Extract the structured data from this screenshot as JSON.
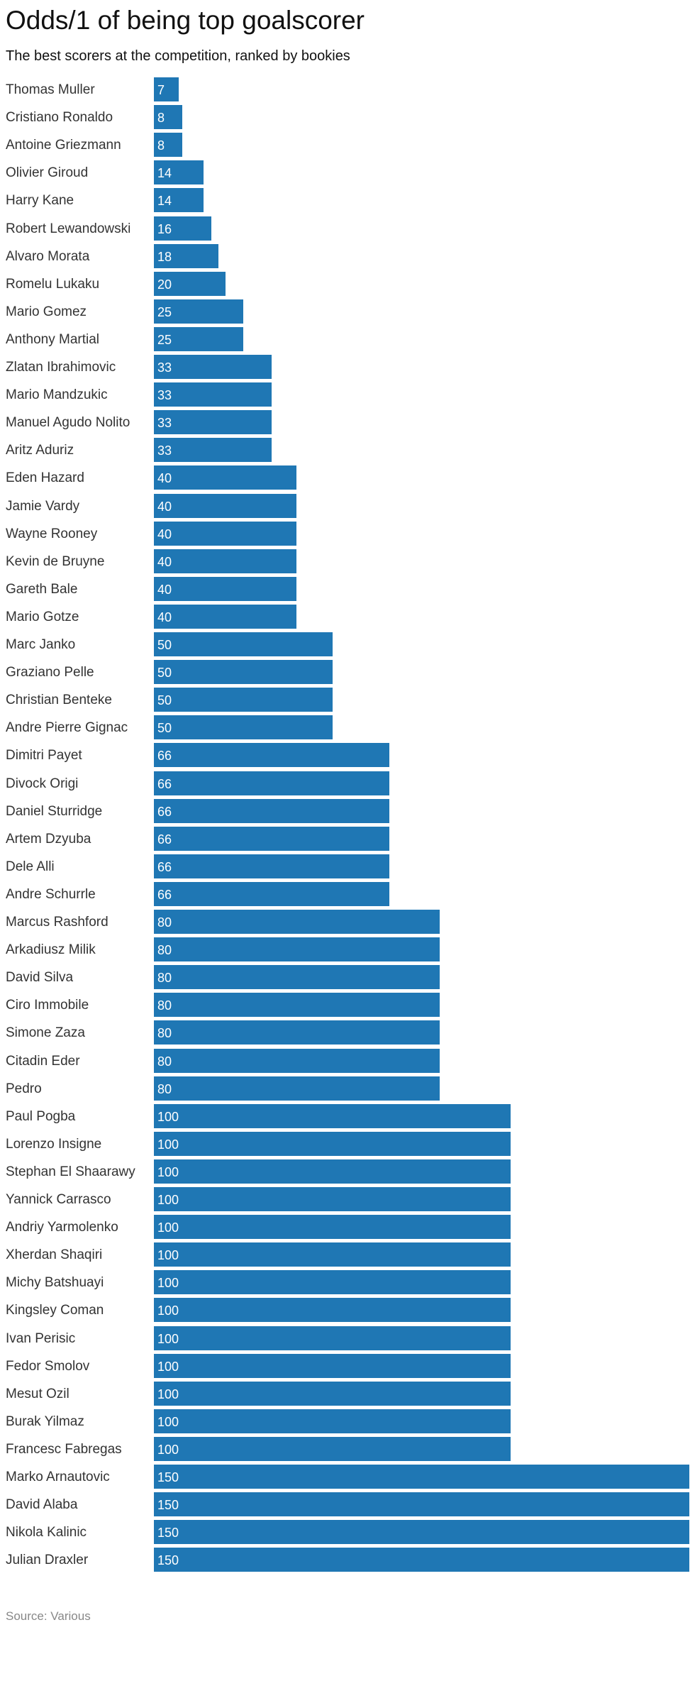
{
  "chart_data": {
    "type": "bar",
    "orientation": "horizontal",
    "title": "Odds/1 of being top goalscorer",
    "subtitle": "The best scorers at the competition, ranked by bookies",
    "source": "Source: Various",
    "bar_color": "#1f77b4",
    "xlim": [
      0,
      150
    ],
    "grid": false,
    "categories": [
      "Thomas Muller",
      "Cristiano Ronaldo",
      "Antoine Griezmann",
      "Olivier Giroud",
      "Harry Kane",
      "Robert Lewandowski",
      "Alvaro Morata",
      "Romelu Lukaku",
      "Mario Gomez",
      "Anthony Martial",
      "Zlatan Ibrahimovic",
      "Mario Mandzukic",
      "Manuel Agudo Nolito",
      "Aritz Aduriz",
      "Eden Hazard",
      "Jamie Vardy",
      "Wayne Rooney",
      "Kevin de Bruyne",
      "Gareth Bale",
      "Mario Gotze",
      "Marc Janko",
      "Graziano Pelle",
      "Christian Benteke",
      "Andre Pierre Gignac",
      "Dimitri Payet",
      "Divock Origi",
      "Daniel Sturridge",
      "Artem Dzyuba",
      "Dele Alli",
      "Andre Schurrle",
      "Marcus Rashford",
      "Arkadiusz Milik",
      "David Silva",
      "Ciro Immobile",
      "Simone Zaza",
      "Citadin Eder",
      "Pedro",
      "Paul Pogba",
      "Lorenzo Insigne",
      "Stephan El Shaarawy",
      "Yannick Carrasco",
      "Andriy Yarmolenko",
      "Xherdan Shaqiri",
      "Michy Batshuayi",
      "Kingsley Coman",
      "Ivan Perisic",
      "Fedor Smolov",
      "Mesut Ozil",
      "Burak Yilmaz",
      "Francesc Fabregas",
      "Marko Arnautovic",
      "David Alaba",
      "Nikola Kalinic",
      "Julian Draxler"
    ],
    "values": [
      7,
      8,
      8,
      14,
      14,
      16,
      18,
      20,
      25,
      25,
      33,
      33,
      33,
      33,
      40,
      40,
      40,
      40,
      40,
      40,
      50,
      50,
      50,
      50,
      66,
      66,
      66,
      66,
      66,
      66,
      80,
      80,
      80,
      80,
      80,
      80,
      80,
      100,
      100,
      100,
      100,
      100,
      100,
      100,
      100,
      100,
      100,
      100,
      100,
      100,
      150,
      150,
      150,
      150
    ]
  }
}
